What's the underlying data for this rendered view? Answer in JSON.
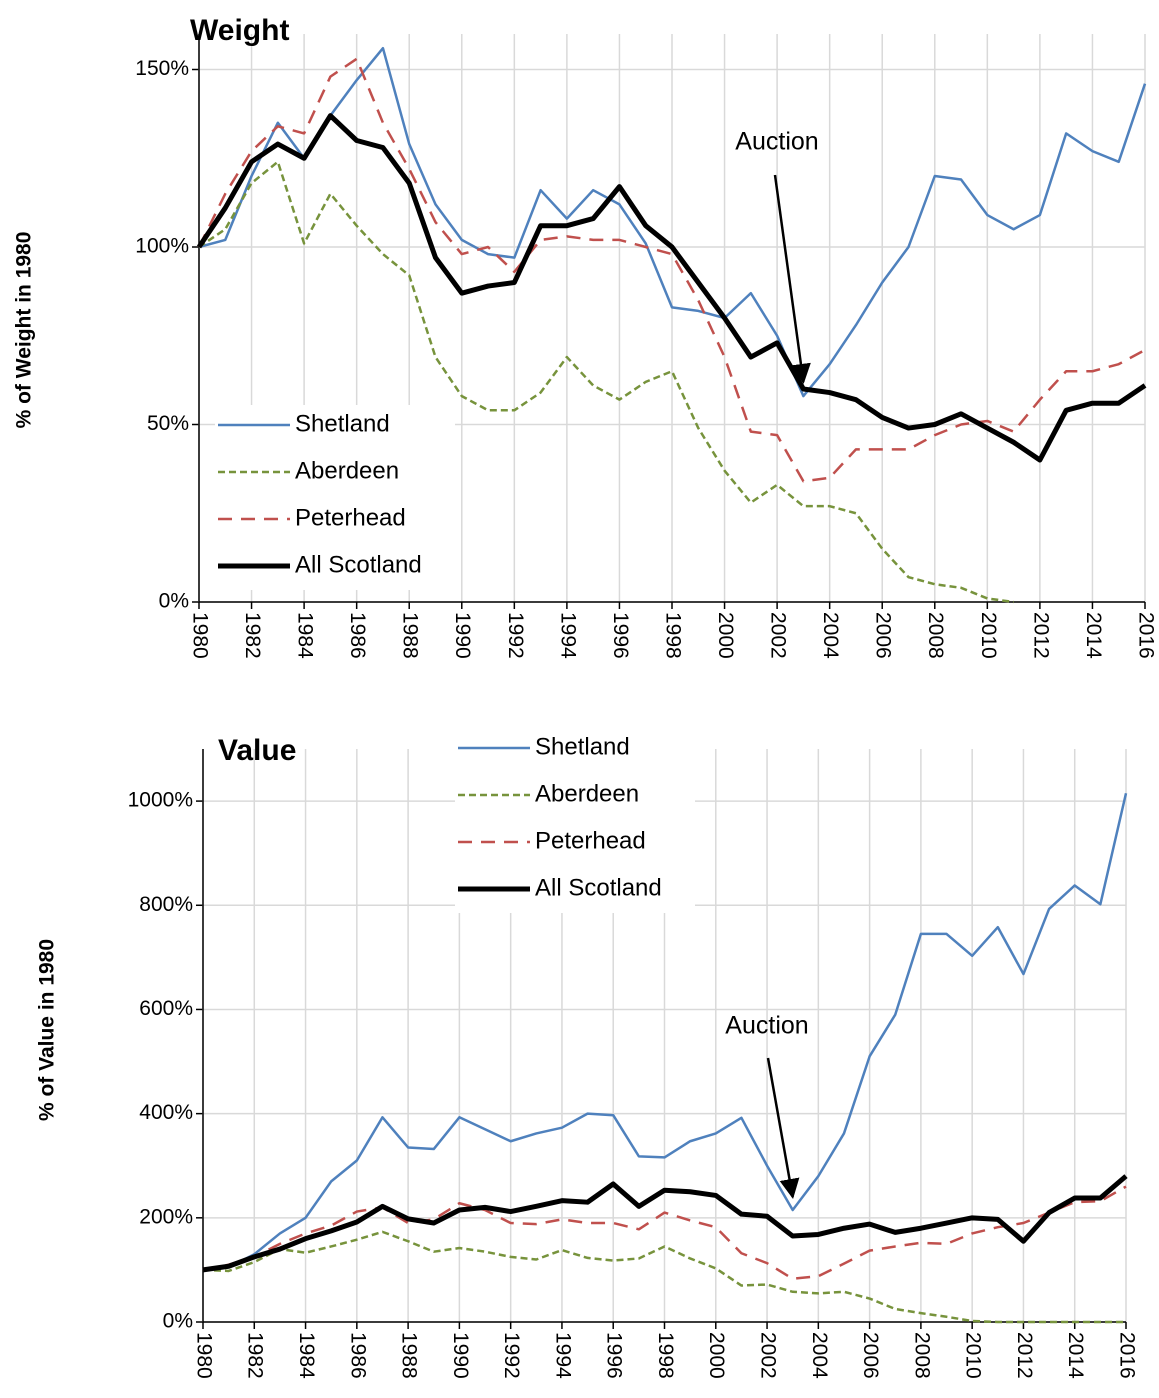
{
  "chart_data": [
    {
      "type": "line",
      "title": "Weight",
      "y_label": "% of Weight in 1980",
      "x": [
        1980,
        1981,
        1982,
        1983,
        1984,
        1985,
        1986,
        1987,
        1988,
        1989,
        1990,
        1991,
        1992,
        1993,
        1994,
        1995,
        1996,
        1997,
        1998,
        1999,
        2000,
        2001,
        2002,
        2003,
        2004,
        2005,
        2006,
        2007,
        2008,
        2009,
        2010,
        2011,
        2012,
        2013,
        2014,
        2015,
        2016
      ],
      "xlim": [
        1980,
        2016
      ],
      "xticks": [
        1980,
        1982,
        1984,
        1986,
        1988,
        1990,
        1992,
        1994,
        1996,
        1998,
        2000,
        2002,
        2004,
        2006,
        2008,
        2010,
        2012,
        2014,
        2016
      ],
      "ylim": [
        0,
        160
      ],
      "yticks": [
        {
          "value": 0,
          "label": "0%"
        },
        {
          "value": 50,
          "label": "50%"
        },
        {
          "value": 100,
          "label": "100%"
        },
        {
          "value": 150,
          "label": "150%"
        }
      ],
      "grid": true,
      "legend": "lower left",
      "series": [
        {
          "name": "Shetland",
          "color": "#4f81bd",
          "linestyle": "solid",
          "values": [
            100,
            102,
            120,
            135,
            125,
            137,
            147,
            156,
            129,
            112,
            102,
            98,
            97,
            116,
            108,
            116,
            112,
            101,
            83,
            82,
            80,
            87,
            75,
            58,
            67,
            78,
            90,
            100,
            120,
            119,
            109,
            105,
            109,
            132,
            127,
            124,
            146
          ]
        },
        {
          "name": "Aberdeen",
          "color": "#77933c",
          "linestyle": "dotted",
          "values": [
            100,
            105,
            118,
            124,
            101,
            115,
            106,
            98,
            92,
            69,
            58,
            54,
            54,
            59,
            69,
            61,
            57,
            62,
            65,
            49,
            37,
            28,
            33,
            27,
            27,
            25,
            15,
            7,
            5,
            4,
            1,
            0,
            null,
            null,
            null,
            null,
            null
          ]
        },
        {
          "name": "Peterhead",
          "color": "#c0504d",
          "linestyle": "dashed",
          "values": [
            100,
            115,
            127,
            134,
            132,
            148,
            153,
            135,
            122,
            107,
            98,
            100,
            93,
            102,
            103,
            102,
            102,
            100,
            98,
            85,
            69,
            48,
            47,
            34,
            35,
            43,
            43,
            43,
            47,
            50,
            51,
            48,
            57,
            65,
            65,
            67,
            71
          ]
        },
        {
          "name": "All Scotland",
          "color": "#000000",
          "linestyle": "bold",
          "values": [
            100,
            111,
            124,
            129,
            125,
            137,
            130,
            128,
            118,
            97,
            87,
            89,
            90,
            106,
            106,
            108,
            117,
            106,
            100,
            90,
            80,
            69,
            73,
            60,
            59,
            57,
            52,
            49,
            50,
            53,
            49,
            45,
            40,
            54,
            56,
            56,
            61
          ]
        }
      ],
      "annotations": [
        {
          "text": "Auction",
          "x": 2003,
          "y": 62
        }
      ]
    },
    {
      "type": "line",
      "title": "Value",
      "y_label": "% of Value in 1980",
      "x": [
        1980,
        1981,
        1982,
        1983,
        1984,
        1985,
        1986,
        1987,
        1988,
        1989,
        1990,
        1991,
        1992,
        1993,
        1994,
        1995,
        1996,
        1997,
        1998,
        1999,
        2000,
        2001,
        2002,
        2003,
        2004,
        2005,
        2006,
        2007,
        2008,
        2009,
        2010,
        2011,
        2012,
        2013,
        2014,
        2015,
        2016
      ],
      "xlim": [
        1980,
        2016
      ],
      "xticks": [
        1980,
        1982,
        1984,
        1986,
        1988,
        1990,
        1992,
        1994,
        1996,
        1998,
        2000,
        2002,
        2004,
        2006,
        2008,
        2010,
        2012,
        2014,
        2016
      ],
      "ylim": [
        0,
        1100
      ],
      "yticks": [
        {
          "value": 0,
          "label": "0%"
        },
        {
          "value": 200,
          "label": "200%"
        },
        {
          "value": 400,
          "label": "400%"
        },
        {
          "value": 600,
          "label": "600%"
        },
        {
          "value": 800,
          "label": "800%"
        },
        {
          "value": 1000,
          "label": "1000%"
        }
      ],
      "grid": true,
      "legend": "upper center",
      "series": [
        {
          "name": "Shetland",
          "color": "#4f81bd",
          "linestyle": "solid",
          "values": [
            100,
            105,
            130,
            170,
            200,
            270,
            310,
            393,
            335,
            332,
            393,
            370,
            347,
            362,
            373,
            400,
            397,
            318,
            316,
            347,
            362,
            392,
            300,
            215,
            280,
            362,
            510,
            590,
            745,
            745,
            703,
            758,
            668,
            793,
            838,
            802,
            1015
          ]
        },
        {
          "name": "Aberdeen",
          "color": "#77933c",
          "linestyle": "dotted",
          "values": [
            100,
            98,
            115,
            140,
            133,
            145,
            158,
            173,
            155,
            135,
            142,
            135,
            125,
            120,
            138,
            123,
            118,
            122,
            145,
            122,
            103,
            70,
            72,
            58,
            55,
            58,
            45,
            25,
            17,
            10,
            2,
            0,
            0,
            0,
            0,
            0,
            0
          ]
        },
        {
          "name": "Peterhead",
          "color": "#c0504d",
          "linestyle": "dashed",
          "values": [
            100,
            110,
            125,
            150,
            170,
            185,
            212,
            220,
            190,
            197,
            228,
            215,
            190,
            188,
            197,
            190,
            190,
            178,
            210,
            195,
            182,
            132,
            113,
            83,
            88,
            112,
            137,
            145,
            152,
            150,
            170,
            182,
            190,
            210,
            230,
            232,
            260
          ]
        },
        {
          "name": "All Scotland",
          "color": "#000000",
          "linestyle": "bold",
          "values": [
            100,
            107,
            125,
            140,
            160,
            175,
            192,
            222,
            198,
            190,
            215,
            220,
            212,
            222,
            233,
            230,
            265,
            222,
            253,
            250,
            243,
            207,
            203,
            165,
            168,
            180,
            188,
            172,
            180,
            190,
            200,
            197,
            155,
            210,
            238,
            238,
            280
          ]
        }
      ],
      "annotations": [
        {
          "text": "Auction",
          "x": 2003,
          "y": 240
        }
      ]
    }
  ]
}
